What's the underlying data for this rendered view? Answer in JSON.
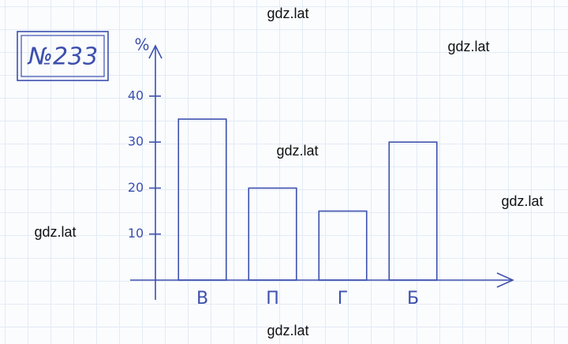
{
  "chart_data": {
    "type": "bar",
    "title": "№233",
    "y_label": "%",
    "categories": [
      "В",
      "П",
      "Г",
      "Б"
    ],
    "values": [
      35,
      20,
      15,
      30
    ],
    "color": "#3d50ad",
    "ylim": [
      0,
      50
    ],
    "yticks": [
      10,
      20,
      30,
      40
    ]
  },
  "watermarks": [
    "gdz.lat",
    "gdz.lat",
    "gdz.lat",
    "gdz.lat",
    "gdz.lat",
    "gdz.lat"
  ]
}
